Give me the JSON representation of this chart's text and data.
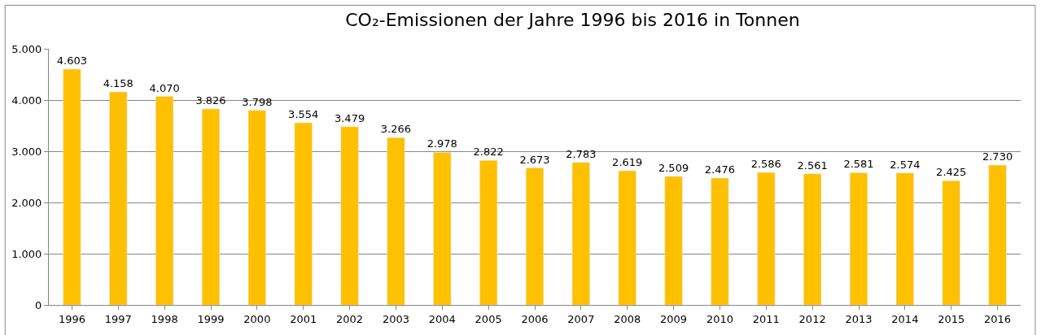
{
  "chart_data": {
    "type": "bar",
    "title": "CO₂-Emissionen der Jahre 1996 bis 2016 in Tonnen",
    "categories": [
      "1996",
      "1997",
      "1998",
      "1999",
      "2000",
      "2001",
      "2002",
      "2003",
      "2004",
      "2005",
      "2006",
      "2007",
      "2008",
      "2009",
      "2010",
      "2011",
      "2012",
      "2013",
      "2014",
      "2015",
      "2016"
    ],
    "values": [
      4603,
      4158,
      4070,
      3826,
      3798,
      3554,
      3479,
      3266,
      2978,
      2822,
      2673,
      2783,
      2619,
      2509,
      2476,
      2586,
      2561,
      2581,
      2574,
      2425,
      2730
    ],
    "value_labels": [
      "4.603",
      "4.158",
      "4.070",
      "3.826",
      "3.798",
      "3.554",
      "3.479",
      "3.266",
      "2.978",
      "2.822",
      "2.673",
      "2.783",
      "2.619",
      "2.509",
      "2.476",
      "2.586",
      "2.561",
      "2.581",
      "2.574",
      "2.425",
      "2.730"
    ],
    "color": "#ffc000",
    "ylim": [
      0,
      5000
    ],
    "yticks": [
      {
        "value": 0,
        "label": "0"
      },
      {
        "value": 1000,
        "label": "1.000"
      },
      {
        "value": 2000,
        "label": "2.000"
      },
      {
        "value": 3000,
        "label": "3.000"
      },
      {
        "value": 4000,
        "label": "4.000"
      },
      {
        "value": 5000,
        "label": "5.000"
      }
    ],
    "grid": "y"
  }
}
